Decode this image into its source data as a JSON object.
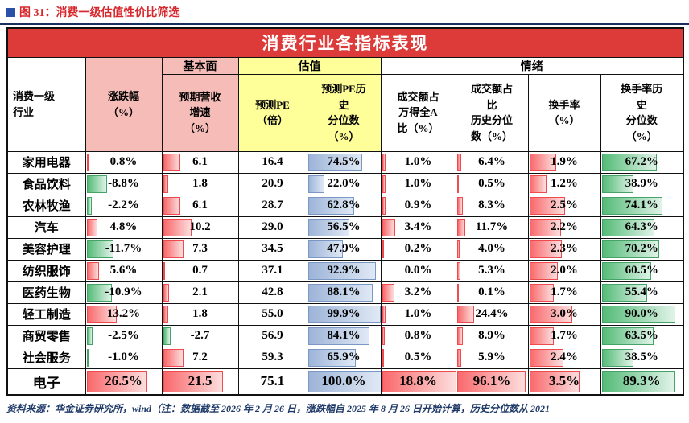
{
  "figure_label": "图 31：消费一级估值性价比筛选",
  "footer_note": "资料来源：华金证券研究所，wind（注：数据截至 2026 年 2 月 26 日，涨跌幅自 2025 年 8 月 26 日开始计算，历史分位数从 2021",
  "colors": {
    "figure_red": "#d7282d",
    "square_blue": "#2b50a8",
    "rule_navy": "#1b2f5e",
    "title_red": "#dd3b39",
    "header_pink": "#f5bcb8",
    "header_yellow": "#ffff9a",
    "bar_red": "#f9696c",
    "bar_green": "#55bb78",
    "bar_blue": "#9db4d8",
    "footer_navy": "#1f3a68"
  },
  "chart_data": {
    "type": "table",
    "title": "消费行业各指标表现",
    "header": {
      "industry": "消费一级\n行业",
      "groups": {
        "fundamentals": "基本面",
        "valuation": "估值",
        "sentiment": "情绪"
      }
    },
    "columns": [
      {
        "key": "change_pct",
        "label": "涨跌幅\n（%）",
        "bar": "posneg",
        "max": 33
      },
      {
        "key": "expected_revenue_growth",
        "label": "预期营收\n增速\n（%）",
        "bar": "posneg",
        "max": 27
      },
      {
        "key": "forward_pe",
        "label": "预测PE\n（倍）",
        "bar": "none",
        "max": 0
      },
      {
        "key": "forward_pe_hist_percentile",
        "label": "预测PE历\n史\n分位数\n（%）",
        "bar": "blue",
        "max": 100
      },
      {
        "key": "turnover_amt_share",
        "label": "成交额占\n万得全A\n比（%）",
        "bar": "red",
        "max": 18.8
      },
      {
        "key": "turnover_amt_share_hist_percentile",
        "label": "成交额占\n比\n历史分位\n数（%）",
        "bar": "red",
        "max": 100
      },
      {
        "key": "turnover_rate",
        "label": "换手率\n（%）",
        "bar": "red",
        "max": 5
      },
      {
        "key": "turnover_rate_hist_percentile",
        "label": "换手率历\n史\n分位数\n（%）",
        "bar": "green",
        "max": 100
      }
    ],
    "rows": [
      {
        "industry": "家用电器",
        "values": [
          "0.8%",
          "6.1",
          "16.4",
          "74.5%",
          "1.0%",
          "6.4%",
          "1.9%",
          "67.2%"
        ],
        "highlight": false
      },
      {
        "industry": "食品饮料",
        "values": [
          "-8.8%",
          "1.8",
          "20.9",
          "22.0%",
          "1.0%",
          "0.5%",
          "1.2%",
          "38.9%"
        ],
        "highlight": false
      },
      {
        "industry": "农林牧渔",
        "values": [
          "-2.2%",
          "6.1",
          "28.7",
          "62.8%",
          "0.9%",
          "8.3%",
          "2.5%",
          "74.1%"
        ],
        "highlight": false
      },
      {
        "industry": "汽车",
        "values": [
          "4.8%",
          "10.2",
          "29.0",
          "56.5%",
          "3.4%",
          "11.7%",
          "2.2%",
          "64.3%"
        ],
        "highlight": false
      },
      {
        "industry": "美容护理",
        "values": [
          "-11.7%",
          "7.3",
          "34.5",
          "47.9%",
          "0.2%",
          "4.0%",
          "2.3%",
          "70.2%"
        ],
        "highlight": false
      },
      {
        "industry": "纺织服饰",
        "values": [
          "5.6%",
          "0.7",
          "37.1",
          "92.9%",
          "0.0%",
          "5.3%",
          "2.0%",
          "60.5%"
        ],
        "highlight": false
      },
      {
        "industry": "医药生物",
        "values": [
          "-10.9%",
          "2.1",
          "42.8",
          "88.1%",
          "3.2%",
          "0.1%",
          "1.7%",
          "55.4%"
        ],
        "highlight": false
      },
      {
        "industry": "轻工制造",
        "values": [
          "13.2%",
          "1.8",
          "55.0",
          "99.9%",
          "1.0%",
          "24.4%",
          "3.0%",
          "90.0%"
        ],
        "highlight": false
      },
      {
        "industry": "商贸零售",
        "values": [
          "-2.5%",
          "-2.7",
          "56.9",
          "84.1%",
          "0.8%",
          "8.9%",
          "1.7%",
          "63.5%"
        ],
        "highlight": false
      },
      {
        "industry": "社会服务",
        "values": [
          "-1.0%",
          "7.2",
          "59.3",
          "65.9%",
          "0.5%",
          "5.9%",
          "2.4%",
          "38.5%"
        ],
        "highlight": false
      },
      {
        "industry": "电子",
        "values": [
          "26.5%",
          "21.5",
          "75.1",
          "100.0%",
          "18.8%",
          "96.1%",
          "3.5%",
          "89.3%"
        ],
        "highlight": true
      }
    ]
  }
}
